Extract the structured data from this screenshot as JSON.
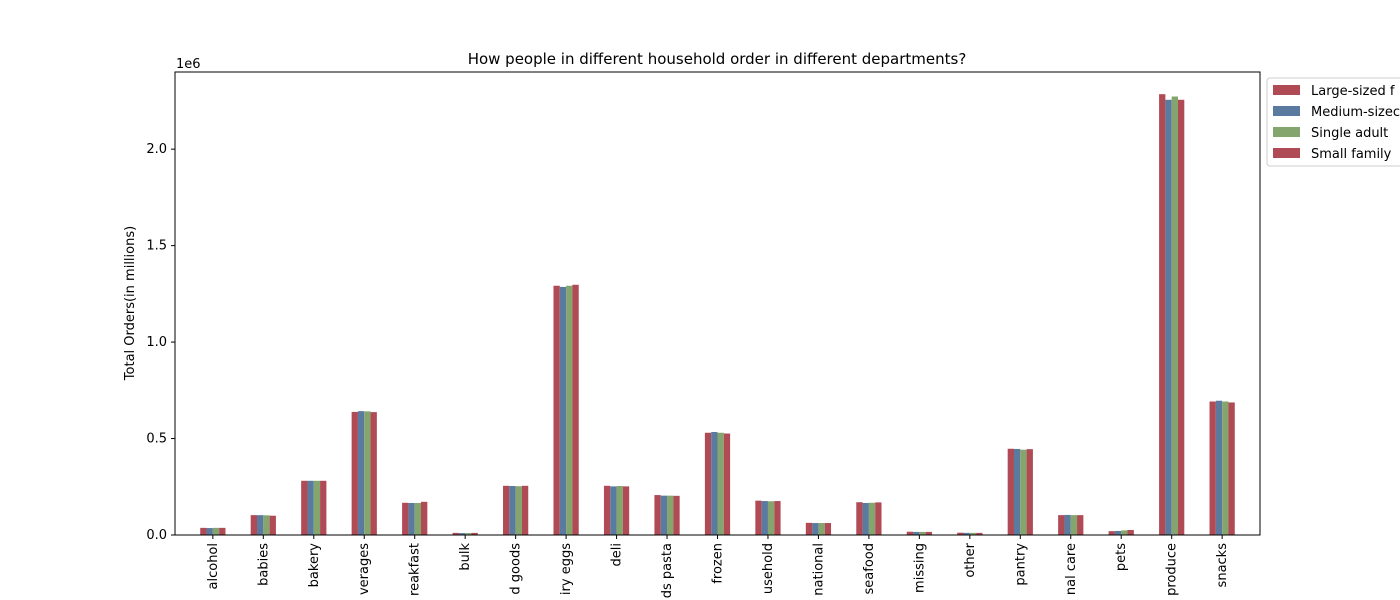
{
  "chart_data": {
    "type": "bar",
    "title": "How people in different household order in different departments?",
    "xlabel": "",
    "ylabel": "Total Orders(in millions)",
    "y_offset_label": "1e6",
    "ylim": [
      0,
      2400000
    ],
    "yticks": [
      0,
      500000,
      1000000,
      1500000,
      2000000
    ],
    "ytick_labels": [
      "0.0",
      "0.5",
      "1.0",
      "1.5",
      "2.0"
    ],
    "grid": false,
    "legend_position": "upper right, outside plot",
    "categories": [
      "alcohol",
      "babies",
      "bakery",
      "beverages",
      "breakfast",
      "bulk",
      "canned goods",
      "dairy eggs",
      "deli",
      "dry goods pasta",
      "frozen",
      "household",
      "international",
      "meat seafood",
      "missing",
      "other",
      "pantry",
      "personal care",
      "pets",
      "produce",
      "snacks"
    ],
    "tick_labels_visible": [
      "alcohol",
      "babies",
      "bakery",
      "verages",
      "reakfast",
      "bulk",
      "d goods",
      "iry eggs",
      "deli",
      "ds pasta",
      "frozen",
      "usehold",
      "national",
      "seafood",
      "missing",
      "other",
      "pantry",
      "nal care",
      "pets",
      "produce",
      "snacks"
    ],
    "series": [
      {
        "name": "Large-sized family",
        "legend_label_visible": "Large-sized f",
        "color": "#b04a55",
        "values": [
          37000,
          103000,
          281000,
          638000,
          167000,
          11000,
          255000,
          1292000,
          255000,
          207000,
          530000,
          178000,
          63000,
          170000,
          17000,
          12000,
          447000,
          103000,
          20000,
          2285000,
          692000
        ]
      },
      {
        "name": "Medium-sized family",
        "legend_label_visible": "Medium-sizec",
        "color": "#5b7aa0",
        "values": [
          36000,
          103000,
          281000,
          642000,
          166000,
          10000,
          254000,
          1286000,
          252000,
          204000,
          534000,
          176000,
          62000,
          166000,
          16000,
          11000,
          446000,
          104000,
          21000,
          2256000,
          696000
        ]
      },
      {
        "name": "Single adult",
        "legend_label_visible": "Single adult",
        "color": "#84a66e",
        "values": [
          37000,
          102000,
          281000,
          641000,
          166000,
          10000,
          253000,
          1292000,
          254000,
          204000,
          530000,
          175000,
          62000,
          167000,
          16000,
          11000,
          442000,
          103000,
          24000,
          2273000,
          692000
        ]
      },
      {
        "name": "Small family",
        "legend_label_visible": "Small family",
        "color": "#b04a55",
        "values": [
          37000,
          100000,
          281000,
          637000,
          172000,
          11000,
          255000,
          1297000,
          252000,
          203000,
          526000,
          176000,
          62000,
          169000,
          16000,
          11000,
          445000,
          103000,
          26000,
          2256000,
          687000
        ]
      }
    ]
  }
}
